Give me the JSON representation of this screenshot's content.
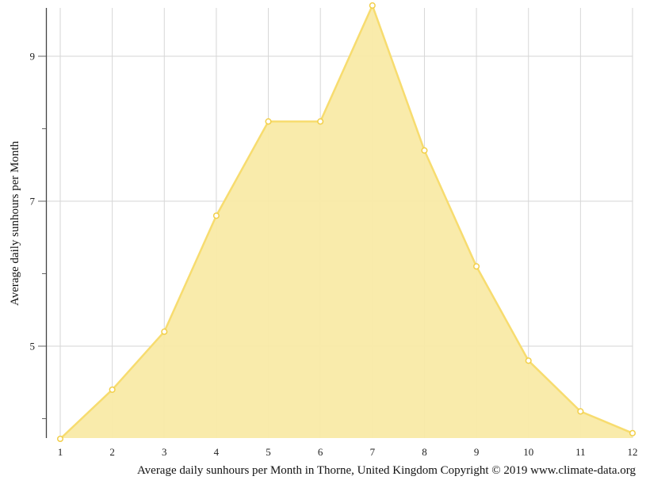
{
  "chart_data": {
    "type": "area",
    "title": "",
    "xlabel": "Average daily sunhours per Month in Thorne, United Kingdom Copyright © 2019 www.climate-data.org",
    "ylabel": "Average daily sunhours per Month",
    "categories": [
      "1",
      "2",
      "3",
      "4",
      "5",
      "6",
      "7",
      "8",
      "9",
      "10",
      "11",
      "12"
    ],
    "series": [
      {
        "name": "Average daily sunhours",
        "values": [
          3.7,
          4.4,
          5.2,
          6.8,
          8.1,
          8.1,
          9.7,
          7.7,
          6.1,
          4.8,
          4.1,
          3.8
        ],
        "color": "#f7dc6f"
      }
    ],
    "y_ticks_labeled": [
      "5",
      "7",
      "9"
    ],
    "y_ticks_minor": [
      4,
      6,
      8
    ],
    "ylim": [
      3.7,
      9.65
    ],
    "grid": true,
    "legend": "none"
  },
  "colors": {
    "fill": "#f9eaa6",
    "stroke": "#f7dc6f",
    "grid": "#d6d6d6",
    "axis": "#444444"
  }
}
